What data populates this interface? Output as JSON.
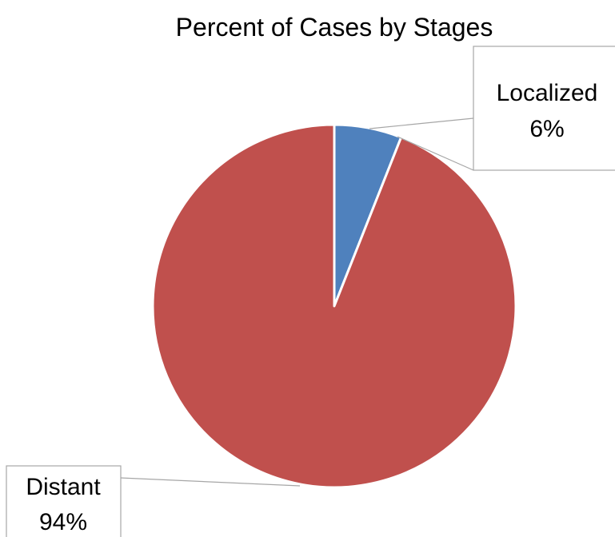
{
  "chart_data": {
    "type": "pie",
    "title": "Percent of Cases by Stages",
    "slices": [
      {
        "label": "Localized",
        "value": 6,
        "display": "6%",
        "color": "#4F81BD"
      },
      {
        "label": "Distant",
        "value": 94,
        "display": "94%",
        "color": "#C0504D"
      }
    ],
    "start_angle": "12 o'clock",
    "direction": "clockwise",
    "legend": "none",
    "data_labels": "outside with leader lines"
  }
}
